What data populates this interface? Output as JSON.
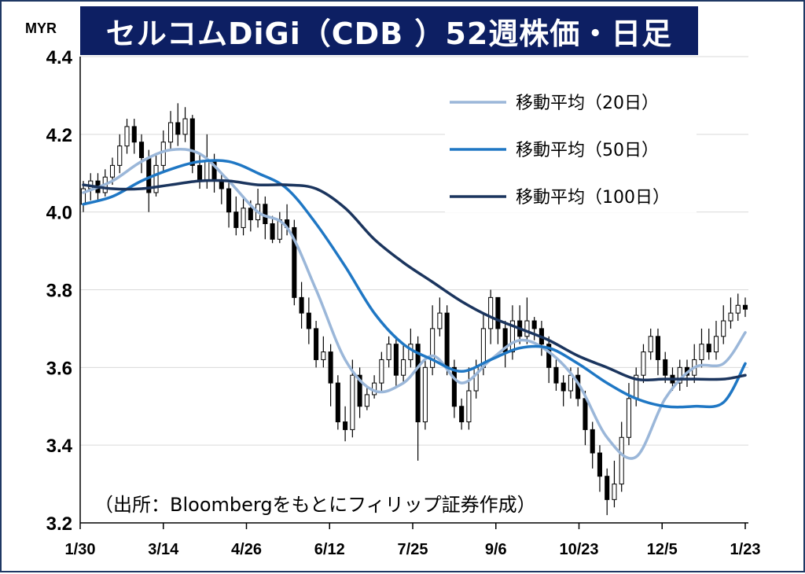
{
  "chart_data": {
    "type": "line",
    "title": "セルコムDiGi（CDB ）52週株価・日足",
    "unit": "MYR",
    "source": "（出所：Bloombergをもとにフィリップ証券作成）",
    "ylim": [
      3.2,
      4.4
    ],
    "y_ticks": [
      "3.2",
      "3.4",
      "3.6",
      "3.8",
      "4.0",
      "4.2",
      "4.4"
    ],
    "x_ticks": [
      "1/30",
      "3/14",
      "4/26",
      "6/12",
      "7/25",
      "9/6",
      "10/23",
      "12/5",
      "1/23"
    ],
    "grid": true,
    "legend_position": "top-right",
    "candles": [
      [
        0,
        4.02,
        4.06,
        4.0,
        4.08
      ],
      [
        1,
        4.06,
        4.08,
        4.03,
        4.1
      ],
      [
        2,
        4.08,
        4.05,
        4.03,
        4.1
      ],
      [
        3,
        4.05,
        4.09,
        4.04,
        4.11
      ],
      [
        4,
        4.09,
        4.12,
        4.07,
        4.14
      ],
      [
        5,
        4.12,
        4.17,
        4.1,
        4.2
      ],
      [
        6,
        4.17,
        4.22,
        4.15,
        4.24
      ],
      [
        7,
        4.22,
        4.18,
        4.15,
        4.24
      ],
      [
        8,
        4.18,
        4.14,
        4.1,
        4.2
      ],
      [
        9,
        4.14,
        4.05,
        4.0,
        4.16
      ],
      [
        10,
        4.05,
        4.12,
        4.04,
        4.15
      ],
      [
        11,
        4.12,
        4.18,
        4.1,
        4.21
      ],
      [
        12,
        4.18,
        4.23,
        4.16,
        4.26
      ],
      [
        13,
        4.23,
        4.2,
        4.17,
        4.28
      ],
      [
        14,
        4.2,
        4.24,
        4.18,
        4.27
      ],
      [
        15,
        4.24,
        4.12,
        4.1,
        4.25
      ],
      [
        16,
        4.12,
        4.08,
        4.06,
        4.15
      ],
      [
        17,
        4.08,
        4.13,
        4.06,
        4.2
      ],
      [
        18,
        4.13,
        4.08,
        4.05,
        4.15
      ],
      [
        19,
        4.08,
        4.06,
        4.02,
        4.1
      ],
      [
        20,
        4.06,
        4.0,
        3.96,
        4.08
      ],
      [
        21,
        4.0,
        3.96,
        3.94,
        4.04
      ],
      [
        22,
        3.96,
        4.01,
        3.94,
        4.04
      ],
      [
        23,
        4.01,
        3.98,
        3.95,
        4.03
      ],
      [
        24,
        3.98,
        4.02,
        3.96,
        4.06
      ],
      [
        25,
        4.02,
        3.97,
        3.93,
        4.04
      ],
      [
        26,
        3.97,
        3.93,
        3.92,
        3.99
      ],
      [
        27,
        3.93,
        3.98,
        3.92,
        4.0
      ],
      [
        28,
        3.98,
        3.96,
        3.94,
        4.02
      ],
      [
        29,
        3.96,
        3.78,
        3.76,
        3.98
      ],
      [
        30,
        3.78,
        3.74,
        3.7,
        3.82
      ],
      [
        31,
        3.74,
        3.7,
        3.66,
        3.78
      ],
      [
        32,
        3.7,
        3.62,
        3.6,
        3.72
      ],
      [
        33,
        3.62,
        3.64,
        3.6,
        3.68
      ],
      [
        34,
        3.64,
        3.56,
        3.5,
        3.66
      ],
      [
        35,
        3.56,
        3.46,
        3.44,
        3.58
      ],
      [
        36,
        3.46,
        3.44,
        3.41,
        3.5
      ],
      [
        37,
        3.44,
        3.58,
        3.42,
        3.62
      ],
      [
        38,
        3.58,
        3.5,
        3.47,
        3.6
      ],
      [
        39,
        3.5,
        3.53,
        3.49,
        3.55
      ],
      [
        40,
        3.53,
        3.56,
        3.52,
        3.58
      ],
      [
        41,
        3.56,
        3.62,
        3.54,
        3.64
      ],
      [
        42,
        3.62,
        3.66,
        3.6,
        3.68
      ],
      [
        43,
        3.66,
        3.58,
        3.55,
        3.68
      ],
      [
        44,
        3.58,
        3.62,
        3.56,
        3.66
      ],
      [
        45,
        3.62,
        3.66,
        3.6,
        3.7
      ],
      [
        46,
        3.66,
        3.46,
        3.36,
        3.68
      ],
      [
        47,
        3.46,
        3.6,
        3.44,
        3.62
      ],
      [
        48,
        3.6,
        3.7,
        3.58,
        3.76
      ],
      [
        49,
        3.7,
        3.74,
        3.68,
        3.78
      ],
      [
        50,
        3.74,
        3.6,
        3.58,
        3.76
      ],
      [
        51,
        3.6,
        3.5,
        3.47,
        3.62
      ],
      [
        52,
        3.5,
        3.46,
        3.44,
        3.52
      ],
      [
        53,
        3.46,
        3.54,
        3.44,
        3.6
      ],
      [
        54,
        3.54,
        3.6,
        3.52,
        3.62
      ],
      [
        55,
        3.6,
        3.7,
        3.58,
        3.74
      ],
      [
        56,
        3.7,
        3.78,
        3.66,
        3.8
      ],
      [
        57,
        3.78,
        3.7,
        3.66,
        3.78
      ],
      [
        58,
        3.7,
        3.64,
        3.6,
        3.72
      ],
      [
        59,
        3.64,
        3.72,
        3.62,
        3.76
      ],
      [
        60,
        3.72,
        3.68,
        3.66,
        3.76
      ],
      [
        61,
        3.68,
        3.72,
        3.66,
        3.78
      ],
      [
        62,
        3.72,
        3.7,
        3.67,
        3.73
      ],
      [
        63,
        3.7,
        3.66,
        3.63,
        3.72
      ],
      [
        64,
        3.66,
        3.6,
        3.56,
        3.68
      ],
      [
        65,
        3.6,
        3.56,
        3.54,
        3.62
      ],
      [
        66,
        3.56,
        3.54,
        3.5,
        3.58
      ],
      [
        67,
        3.54,
        3.58,
        3.52,
        3.6
      ],
      [
        68,
        3.58,
        3.52,
        3.5,
        3.6
      ],
      [
        69,
        3.52,
        3.44,
        3.4,
        3.54
      ],
      [
        70,
        3.44,
        3.38,
        3.34,
        3.46
      ],
      [
        71,
        3.38,
        3.32,
        3.28,
        3.4
      ],
      [
        72,
        3.32,
        3.26,
        3.22,
        3.34
      ],
      [
        73,
        3.26,
        3.3,
        3.24,
        3.36
      ],
      [
        74,
        3.3,
        3.42,
        3.28,
        3.46
      ],
      [
        75,
        3.42,
        3.52,
        3.4,
        3.56
      ],
      [
        76,
        3.52,
        3.58,
        3.5,
        3.6
      ],
      [
        77,
        3.58,
        3.64,
        3.56,
        3.66
      ],
      [
        78,
        3.64,
        3.68,
        3.62,
        3.7
      ],
      [
        79,
        3.68,
        3.62,
        3.58,
        3.7
      ],
      [
        80,
        3.62,
        3.58,
        3.56,
        3.64
      ],
      [
        81,
        3.58,
        3.56,
        3.54,
        3.6
      ],
      [
        82,
        3.56,
        3.6,
        3.54,
        3.62
      ],
      [
        83,
        3.6,
        3.58,
        3.55,
        3.62
      ],
      [
        84,
        3.58,
        3.62,
        3.56,
        3.66
      ],
      [
        85,
        3.62,
        3.66,
        3.6,
        3.7
      ],
      [
        86,
        3.66,
        3.64,
        3.62,
        3.7
      ],
      [
        87,
        3.64,
        3.68,
        3.62,
        3.72
      ],
      [
        88,
        3.68,
        3.72,
        3.66,
        3.76
      ],
      [
        89,
        3.72,
        3.74,
        3.7,
        3.78
      ],
      [
        90,
        3.74,
        3.76,
        3.72,
        3.79
      ],
      [
        91,
        3.76,
        3.75,
        3.73,
        3.78
      ]
    ],
    "x_range": [
      0,
      91
    ],
    "series": [
      {
        "name": "移動平均（20日）",
        "color": "#9bb7d9",
        "x": [
          0,
          4,
          8,
          12,
          16,
          20,
          24,
          28,
          32,
          36,
          40,
          44,
          48,
          52,
          56,
          60,
          64,
          68,
          72,
          76,
          80,
          84,
          88,
          91
        ],
        "values": [
          4.05,
          4.08,
          4.13,
          4.16,
          4.15,
          4.08,
          4.0,
          3.96,
          3.8,
          3.62,
          3.54,
          3.56,
          3.63,
          3.56,
          3.62,
          3.67,
          3.64,
          3.56,
          3.42,
          3.37,
          3.52,
          3.6,
          3.61,
          3.69
        ]
      },
      {
        "name": "移動平均（50日）",
        "color": "#1f77c4",
        "x": [
          0,
          4,
          8,
          12,
          16,
          20,
          24,
          28,
          32,
          36,
          40,
          44,
          48,
          52,
          56,
          60,
          64,
          68,
          72,
          76,
          80,
          84,
          88,
          91
        ],
        "values": [
          4.02,
          4.04,
          4.08,
          4.11,
          4.13,
          4.13,
          4.1,
          4.06,
          3.97,
          3.86,
          3.74,
          3.66,
          3.62,
          3.59,
          3.62,
          3.65,
          3.65,
          3.61,
          3.56,
          3.52,
          3.5,
          3.5,
          3.51,
          3.61
        ]
      },
      {
        "name": "移動平均（100日）",
        "color": "#1b355e",
        "x": [
          0,
          4,
          8,
          12,
          16,
          20,
          24,
          28,
          32,
          36,
          40,
          44,
          48,
          52,
          56,
          60,
          64,
          68,
          72,
          76,
          80,
          84,
          88,
          91
        ],
        "values": [
          4.07,
          4.06,
          4.06,
          4.07,
          4.08,
          4.08,
          4.07,
          4.07,
          4.06,
          4.01,
          3.93,
          3.87,
          3.82,
          3.77,
          3.73,
          3.7,
          3.67,
          3.63,
          3.6,
          3.57,
          3.57,
          3.57,
          3.57,
          3.58
        ]
      }
    ]
  }
}
